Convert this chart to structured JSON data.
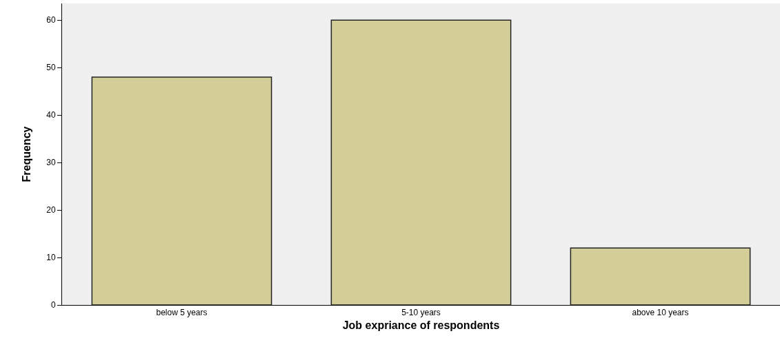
{
  "chart_data": {
    "type": "bar",
    "xlabel": "Job expriance of respondents",
    "ylabel": "Frequency",
    "categories": [
      "below 5 years",
      "5-10 years",
      "above 10 years"
    ],
    "values": [
      48,
      60,
      12
    ],
    "color": "#d3ce97",
    "ylim": [
      0,
      63.5
    ],
    "yticks": [
      0,
      10,
      20,
      30,
      40,
      50,
      60
    ]
  }
}
